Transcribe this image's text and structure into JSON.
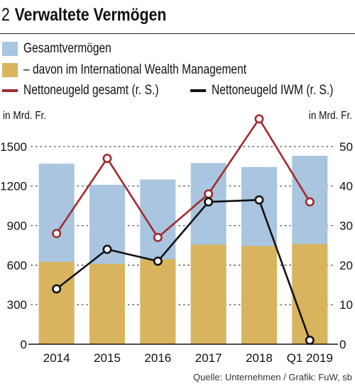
{
  "header": {
    "number": "2",
    "title": "Verwaltete Vermögen"
  },
  "legend": [
    {
      "label": "Gesamtvermögen",
      "color": "#a9c5df",
      "kind": "box"
    },
    {
      "label": "– davon im International Wealth Management",
      "color": "#d8b45e",
      "kind": "box"
    },
    {
      "label": "Nettoneugeld gesamt (r. S.)",
      "color": "#a12a2f",
      "kind": "line"
    },
    {
      "label": "Nettoneugeld IWM (r. S.)",
      "color": "#111111",
      "kind": "line"
    }
  ],
  "axis": {
    "left_unit": "in Mrd. Fr.",
    "right_unit": "in Mrd. Fr."
  },
  "source": "Quelle: Unternehmen / Grafik: FuW, sb",
  "chart_data": {
    "type": "bar",
    "categories": [
      "2014",
      "2015",
      "2016",
      "2017",
      "2018",
      "Q1 2019"
    ],
    "series": [
      {
        "name": "Gesamtvermögen",
        "type": "bar",
        "axis": "left",
        "color": "#a9c5df",
        "values": [
          1370,
          1210,
          1250,
          1375,
          1345,
          1430
        ]
      },
      {
        "name": "– davon im International Wealth Management",
        "type": "bar",
        "axis": "left",
        "color": "#d8b45e",
        "values": [
          625,
          610,
          645,
          755,
          745,
          760
        ]
      },
      {
        "name": "Nettoneugeld gesamt (r. S.)",
        "type": "line",
        "axis": "right",
        "color": "#a12a2f",
        "values": [
          28,
          47,
          27,
          38,
          57,
          36
        ]
      },
      {
        "name": "Nettoneugeld IWM (r. S.)",
        "type": "line",
        "axis": "right",
        "color": "#111111",
        "values": [
          14,
          24,
          21,
          36,
          36.5,
          1
        ]
      }
    ],
    "y_left": {
      "ticks": [
        "0",
        "300",
        "600",
        "900",
        "1200",
        "1500"
      ],
      "range": [
        0,
        1650
      ]
    },
    "y_right": {
      "ticks": [
        "0",
        "10",
        "20",
        "30",
        "40",
        "50"
      ],
      "range": [
        0,
        55
      ]
    },
    "grid": "dotted horizontal",
    "legend_position": "top"
  }
}
